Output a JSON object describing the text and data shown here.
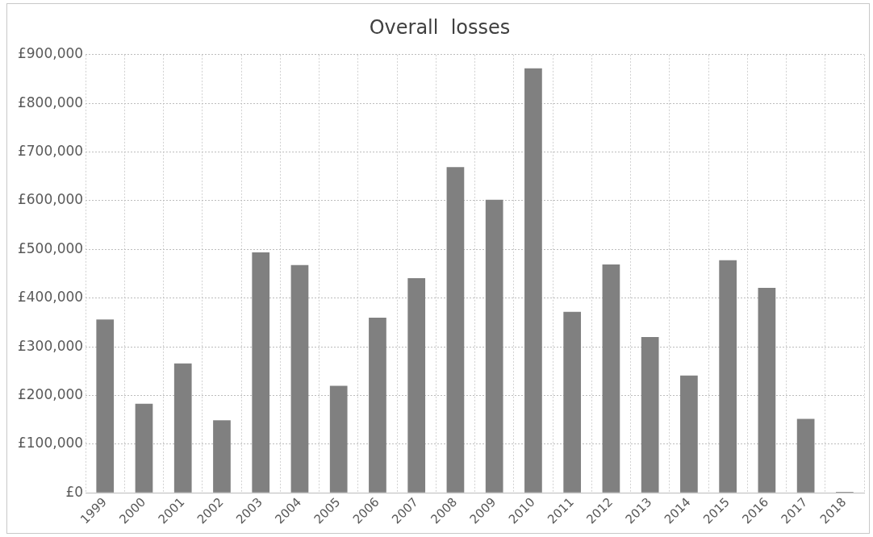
{
  "chart_data": {
    "type": "bar",
    "title": "Overall  losses",
    "categories": [
      "1999",
      "2000",
      "2001",
      "2002",
      "2003",
      "2004",
      "2005",
      "2006",
      "2007",
      "2008",
      "2009",
      "2010",
      "2011",
      "2012",
      "2013",
      "2014",
      "2015",
      "2016",
      "2017",
      "2018"
    ],
    "values": [
      356000,
      183000,
      266000,
      149000,
      494000,
      468000,
      220000,
      360000,
      441000,
      669000,
      602000,
      872000,
      372000,
      469000,
      320000,
      241000,
      478000,
      421000,
      152000,
      2000
    ],
    "color": "#808080",
    "ylim": [
      0,
      900000
    ],
    "yticks": [
      {
        "value": 0,
        "label": "£0"
      },
      {
        "value": 100000,
        "label": "£100,000"
      },
      {
        "value": 200000,
        "label": "£200,000"
      },
      {
        "value": 300000,
        "label": "£300,000"
      },
      {
        "value": 400000,
        "label": "£400,000"
      },
      {
        "value": 500000,
        "label": "£500,000"
      },
      {
        "value": 600000,
        "label": "£600,000"
      },
      {
        "value": 700000,
        "label": "£700,000"
      },
      {
        "value": 800000,
        "label": "£800,000"
      },
      {
        "value": 900000,
        "label": "£900,000"
      }
    ],
    "grid": true
  }
}
